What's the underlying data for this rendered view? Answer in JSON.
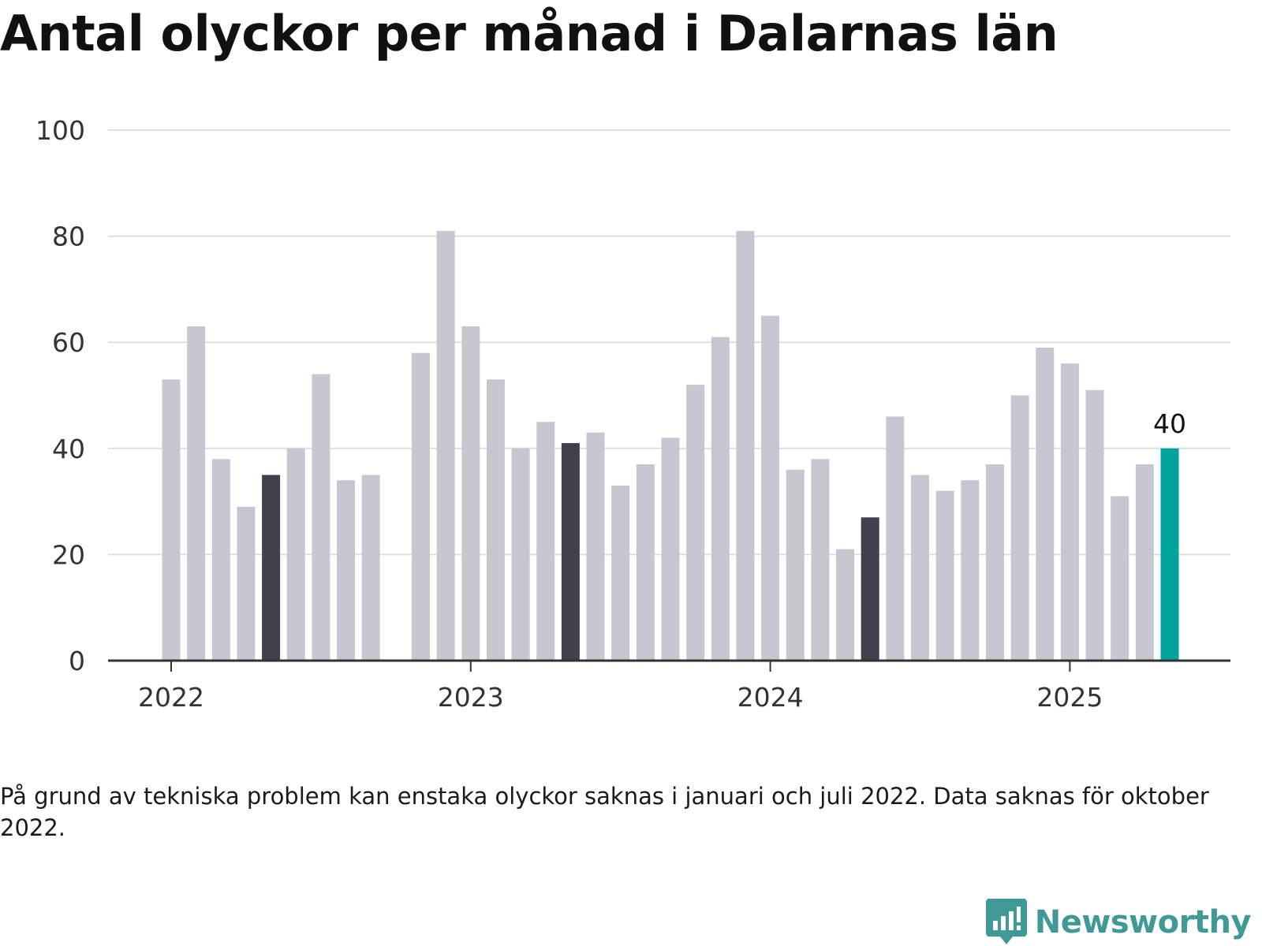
{
  "chart_data": {
    "type": "bar",
    "title": "Antal olyckor per månad i Dalarnas län",
    "ylim": [
      0,
      100
    ],
    "yticks": [
      "0",
      "20",
      "40",
      "60",
      "80",
      "100"
    ],
    "xtick_labels": [
      "2022",
      "2023",
      "2024",
      "2025"
    ],
    "categories": [
      "2022-01",
      "2022-02",
      "2022-03",
      "2022-04",
      "2022-05",
      "2022-06",
      "2022-07",
      "2022-08",
      "2022-09",
      "2022-10",
      "2022-11",
      "2022-12",
      "2023-01",
      "2023-02",
      "2023-03",
      "2023-04",
      "2023-05",
      "2023-06",
      "2023-07",
      "2023-08",
      "2023-09",
      "2023-10",
      "2023-11",
      "2023-12",
      "2024-01",
      "2024-02",
      "2024-03",
      "2024-04",
      "2024-05",
      "2024-06",
      "2024-07",
      "2024-08",
      "2024-09",
      "2024-10",
      "2024-11",
      "2024-12",
      "2025-01",
      "2025-02",
      "2025-03",
      "2025-04",
      "2025-05"
    ],
    "values": [
      53,
      63,
      38,
      29,
      35,
      40,
      54,
      34,
      35,
      null,
      58,
      81,
      63,
      53,
      40,
      45,
      41,
      43,
      33,
      37,
      42,
      52,
      61,
      81,
      65,
      36,
      38,
      21,
      27,
      46,
      35,
      32,
      34,
      37,
      50,
      59,
      56,
      51,
      31,
      37,
      40
    ],
    "highlight": {
      "2022-05": "dark",
      "2023-05": "dark",
      "2024-05": "dark",
      "2025-05": "accent"
    },
    "value_label": {
      "category": "2025-05",
      "text": "40"
    },
    "grid": true,
    "colors": {
      "default": "#c8c7d1",
      "dark": "#41404d",
      "accent": "#00a39a",
      "grid": "#dedede",
      "axis": "#333333"
    }
  },
  "footnote": "På grund av tekniska problem kan enstaka olyckor saknas i januari och juli 2022. Data saknas för oktober 2022.",
  "brand": {
    "name": "Newsworthy",
    "icon": "newsworthy-logo-icon",
    "color": "#3f9a97"
  }
}
